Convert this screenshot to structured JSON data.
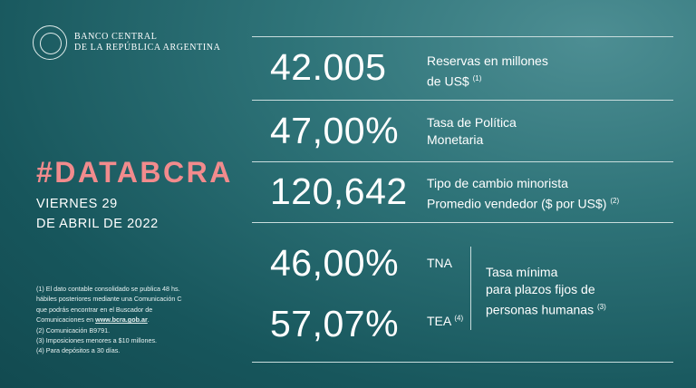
{
  "logo": {
    "line1": "BANCO CENTRAL",
    "line2": "DE LA REPÚBLICA ARGENTINA"
  },
  "hashtag": "#DATABCRA",
  "date": {
    "line1": "VIERNES 29",
    "line2": "DE ABRIL DE 2022"
  },
  "stats": {
    "reservas": {
      "value": "42.005",
      "label1": "Reservas en millones",
      "label2": "de US$",
      "note": "(1)"
    },
    "tasa_politica": {
      "value": "47,00%",
      "label1": "Tasa de Política",
      "label2": "Monetaria"
    },
    "tipo_cambio": {
      "value": "120,642",
      "label1": "Tipo de cambio minorista",
      "label2": "Promedio vendedor  ($ por US$)",
      "note": "(2)"
    },
    "tna": {
      "value": "46,00%",
      "label": "TNA"
    },
    "tea": {
      "value": "57,07%",
      "label": "TEA",
      "note": "(4)"
    },
    "tasa_minima": {
      "line1": "Tasa mínima",
      "line2": "para plazos fijos de",
      "line3": "personas humanas",
      "note": "(3)"
    }
  },
  "notes": {
    "n1a": "(1) El dato contable consolidado se publica 48 hs.",
    "n1b": "hábiles posteriores mediante una Comunicación C",
    "n1c": "que podrás encontrar en el Buscador de",
    "n1d": "Comunicaciones en ",
    "link": "www.bcra.gob.ar",
    "n1e": ".",
    "n2": "(2) Comunicación B9791.",
    "n3": "(3) Imposiciones menores a $10 millones.",
    "n4": "(4) Para depósitos a 30 días."
  }
}
